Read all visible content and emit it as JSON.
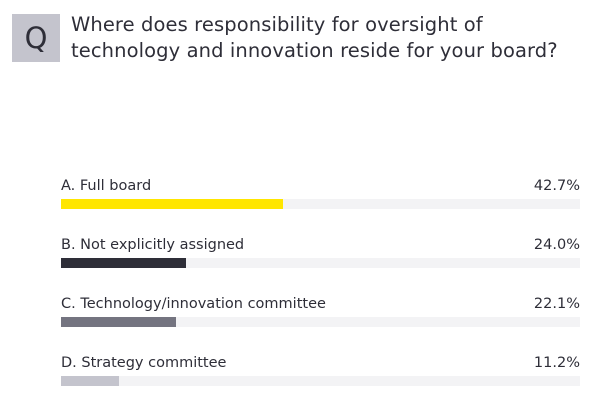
{
  "header": {
    "badge": "Q",
    "question": "Where does responsibility for oversight of technology and innovation reside for your board?"
  },
  "chart_data": {
    "type": "bar",
    "orientation": "horizontal",
    "categories": [
      "A. Full board",
      "B. Not explicitly assigned",
      "C. Technology/innovation committee",
      "D. Strategy committee"
    ],
    "values": [
      42.7,
      24.0,
      22.1,
      11.2
    ],
    "value_labels": [
      "42.7%",
      "24.0%",
      "22.1%",
      "11.2%"
    ],
    "colors": [
      "#ffe600",
      "#2e2e38",
      "#747480",
      "#c4c4cd"
    ],
    "track_color": "#f3f3f5",
    "xlim": [
      0,
      100
    ],
    "title": "Where does responsibility for oversight of technology and innovation reside for your board?",
    "xlabel": "",
    "ylabel": "",
    "grid": false
  }
}
